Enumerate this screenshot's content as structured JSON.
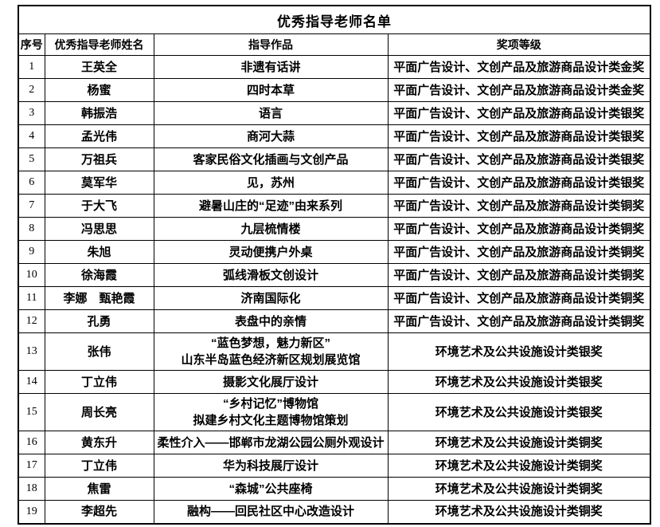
{
  "colors": {
    "background": "#ffffff",
    "border": "#000000",
    "text": "#000000"
  },
  "table": {
    "title": "优秀指导老师名单",
    "columns": [
      "序号",
      "优秀指导老师姓名",
      "指导作品",
      "奖项等级"
    ],
    "rows": [
      {
        "no": "1",
        "name": "王英全",
        "work": "非遗有话讲",
        "award": "平面广告设计、文创产品及旅游商品设计类金奖"
      },
      {
        "no": "2",
        "name": "杨蜜",
        "work": "四时本草",
        "award": "平面广告设计、文创产品及旅游商品设计类金奖"
      },
      {
        "no": "3",
        "name": "韩振浩",
        "work": "语言",
        "award": "平面广告设计、文创产品及旅游商品设计类银奖"
      },
      {
        "no": "4",
        "name": "孟光伟",
        "work": "商河大蒜",
        "award": "平面广告设计、文创产品及旅游商品设计类银奖"
      },
      {
        "no": "5",
        "name": "万祖兵",
        "work": "客家民俗文化插画与文创产品",
        "award": "平面广告设计、文创产品及旅游商品设计类银奖"
      },
      {
        "no": "6",
        "name": "莫军华",
        "work": "见，苏州",
        "award": "平面广告设计、文创产品及旅游商品设计类银奖"
      },
      {
        "no": "7",
        "name": "于大飞",
        "work": "避暑山庄的“足迹”由来系列",
        "award": "平面广告设计、文创产品及旅游商品设计类铜奖"
      },
      {
        "no": "8",
        "name": "冯思思",
        "work": "九层梳情楼",
        "award": "平面广告设计、文创产品及旅游商品设计类铜奖"
      },
      {
        "no": "9",
        "name": "朱旭",
        "work": "灵动便携户外桌",
        "award": "平面广告设计、文创产品及旅游商品设计类铜奖"
      },
      {
        "no": "10",
        "name": "徐海霞",
        "work": "弧线滑板文创设计",
        "award": "平面广告设计、文创产品及旅游商品设计类铜奖"
      },
      {
        "no": "11",
        "name": "李娜　甄艳霞",
        "work": "济南国际化",
        "award": "平面广告设计、文创产品及旅游商品设计类铜奖"
      },
      {
        "no": "12",
        "name": "孔勇",
        "work": "表盘中的亲情",
        "award": "平面广告设计、文创产品及旅游商品设计类铜奖"
      },
      {
        "no": "13",
        "name": "张伟",
        "work": "“蓝色梦想，魅力新区”\n山东半岛蓝色经济新区规划展览馆",
        "award": "环境艺术及公共设施设计类银奖"
      },
      {
        "no": "14",
        "name": "丁立伟",
        "work": "摄影文化展厅设计",
        "award": "环境艺术及公共设施设计类银奖"
      },
      {
        "no": "15",
        "name": "周长亮",
        "work": "“乡村记忆”博物馆\n拟建乡村文化主题博物馆策划",
        "award": "环境艺术及公共设施设计类银奖"
      },
      {
        "no": "16",
        "name": "黄东升",
        "work": "柔性介入——邯郸市龙湖公园公厕外观设计",
        "award": "环境艺术及公共设施设计类铜奖"
      },
      {
        "no": "17",
        "name": "丁立伟",
        "work": "华为科技展厅设计",
        "award": "环境艺术及公共设施设计类铜奖"
      },
      {
        "no": "18",
        "name": "焦雷",
        "work": "“森城”公共座椅",
        "award": "环境艺术及公共设施设计类铜奖"
      },
      {
        "no": "19",
        "name": "李超先",
        "work": "融构——回民社区中心改造设计",
        "award": "环境艺术及公共设施设计类铜奖"
      }
    ]
  }
}
